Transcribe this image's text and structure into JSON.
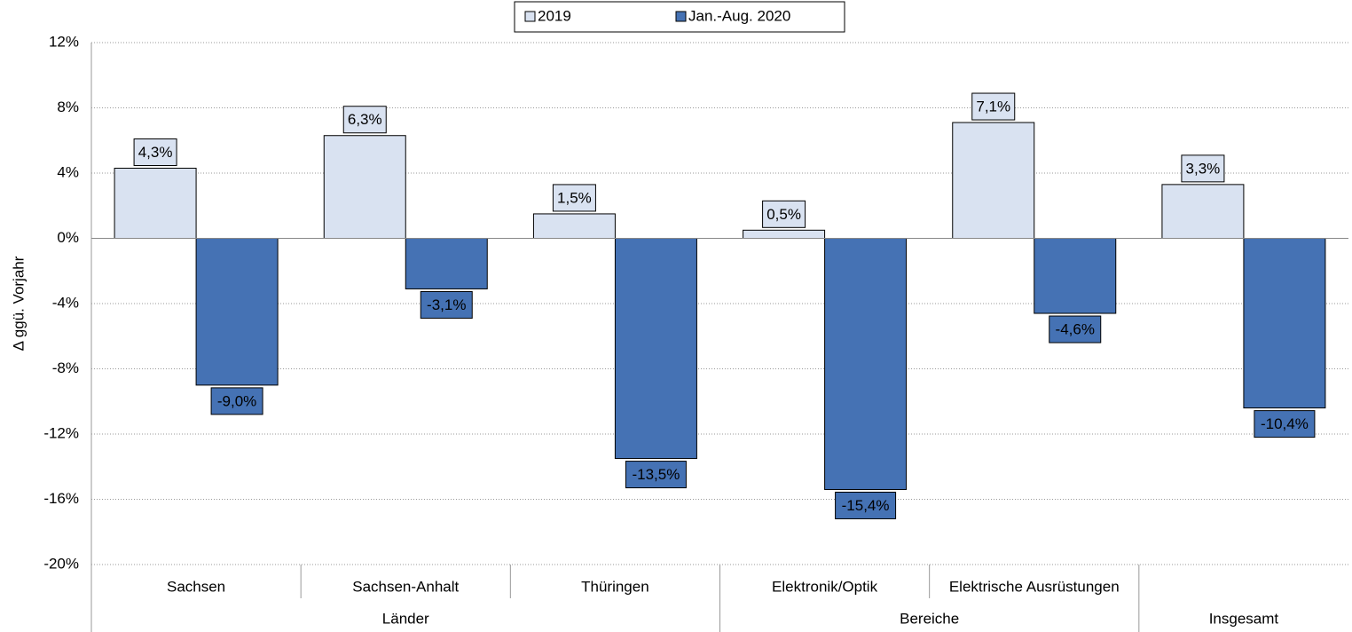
{
  "chart_data": {
    "type": "bar",
    "y_label": "Δ ggü. Vorjahr",
    "categories": [
      "Sachsen",
      "Sachsen-Anhalt",
      "Thüringen",
      "Elektronik/Optik",
      "Elektrische Ausrüstungen",
      null
    ],
    "category_groups": [
      "Länder",
      "Länder",
      "Länder",
      "Bereiche",
      "Bereiche",
      "Insgesamt"
    ],
    "series": [
      {
        "name": "2019",
        "color": "#d9e2f1",
        "values": [
          4.3,
          6.3,
          1.5,
          0.5,
          7.1,
          3.3
        ],
        "value_labels": [
          "4,3%",
          "6,3%",
          "1,5%",
          "0,5%",
          "7,1%",
          "3,3%"
        ]
      },
      {
        "name": "Jan.-Aug. 2020",
        "color": "#4572b4",
        "values": [
          -9.0,
          -3.1,
          -13.5,
          -15.4,
          -4.6,
          -10.4
        ],
        "value_labels": [
          "-9,0%",
          "-3,1%",
          "-13,5%",
          "-15,4%",
          "-4,6%",
          "-10,4%"
        ]
      }
    ],
    "ylim": [
      -20,
      12
    ],
    "yticks": [
      {
        "value": -20,
        "label": "-20%"
      },
      {
        "value": -16,
        "label": "-16%"
      },
      {
        "value": -12,
        "label": "-12%"
      },
      {
        "value": -8,
        "label": "-8%"
      },
      {
        "value": -4,
        "label": "-4%"
      },
      {
        "value": 0,
        "label": "0%"
      },
      {
        "value": 4,
        "label": "4%"
      },
      {
        "value": 8,
        "label": "8%"
      },
      {
        "value": 12,
        "label": "12%"
      }
    ],
    "grid": true,
    "legend": "top"
  }
}
